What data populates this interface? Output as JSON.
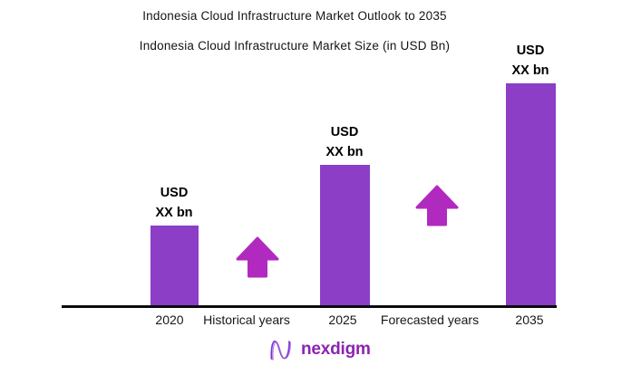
{
  "chart_data": {
    "type": "bar",
    "title": "Indonesia Cloud Infrastructure Market Outlook to 2035",
    "subtitle": "Indonesia Cloud Infrastructure Market Size (in USD Bn)",
    "categories": [
      "2020",
      "2025",
      "2035"
    ],
    "values": [
      "XX",
      "XX",
      "XX"
    ],
    "unit": "USD bn",
    "value_labels": [
      {
        "line1": "USD",
        "line2": "XX bn"
      },
      {
        "line1": "USD",
        "line2": "XX bn"
      },
      {
        "line1": "USD",
        "line2": "XX bn"
      }
    ],
    "relative_heights": [
      0.362,
      0.634,
      1.0
    ],
    "annotations": [
      {
        "label": "Historical years",
        "icon": "arrow-up",
        "between": [
          "2020",
          "2025"
        ]
      },
      {
        "label": "Forecasted years",
        "icon": "arrow-up",
        "between": [
          "2025",
          "2035"
        ]
      }
    ],
    "bar_color": "#8C3EC6",
    "arrow_color": "#B12ABF",
    "axis_color": "#0a0a0a",
    "grid": false,
    "legend": false
  },
  "brand": {
    "logo_text": "nexdigm",
    "logo_color": "#8B24B0"
  }
}
